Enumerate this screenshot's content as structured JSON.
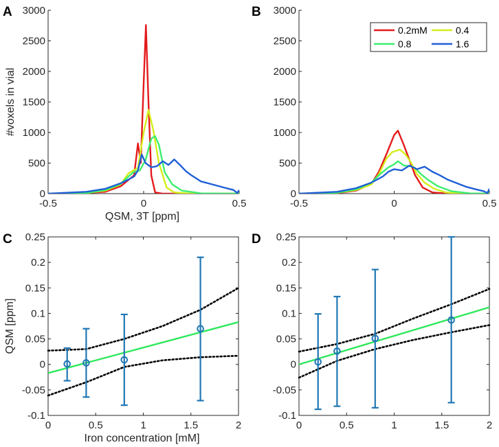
{
  "figure": {
    "panel_labels": [
      "A",
      "B",
      "C",
      "D"
    ]
  },
  "colors": {
    "red": "#e41a1c",
    "yellow": "#d4ee1a",
    "green": "#3cee6e",
    "blue": "#1f5fd6",
    "errorbar": "#1f77b4",
    "fit": "#2ee85c",
    "ci": "#000000",
    "axis": "#262626"
  },
  "chart_data": [
    {
      "id": "A",
      "type": "line",
      "xlim": [
        -0.5,
        0.5
      ],
      "ylim": [
        0,
        3000
      ],
      "xticks": [
        -0.5,
        0,
        0.5
      ],
      "yticks": [
        0,
        500,
        1000,
        1500,
        2000,
        2500,
        3000
      ],
      "xlabel": "QSM, 3T [ppm]",
      "ylabel": "#voxels in vial",
      "series": [
        {
          "name": "0.2mM",
          "color": "red",
          "points": [
            [
              -0.5,
              0
            ],
            [
              -0.35,
              5
            ],
            [
              -0.2,
              30
            ],
            [
              -0.12,
              120
            ],
            [
              -0.05,
              300
            ],
            [
              -0.03,
              820
            ],
            [
              -0.015,
              500
            ],
            [
              0.0,
              1800
            ],
            [
              0.012,
              2760
            ],
            [
              0.025,
              1500
            ],
            [
              0.04,
              300
            ],
            [
              0.06,
              20
            ],
            [
              0.1,
              0
            ],
            [
              0.5,
              0
            ]
          ]
        },
        {
          "name": "0.4",
          "color": "yellow",
          "points": [
            [
              -0.5,
              0
            ],
            [
              -0.3,
              10
            ],
            [
              -0.2,
              50
            ],
            [
              -0.12,
              150
            ],
            [
              -0.08,
              330
            ],
            [
              -0.06,
              370
            ],
            [
              -0.03,
              420
            ],
            [
              0.0,
              1000
            ],
            [
              0.025,
              1370
            ],
            [
              0.05,
              1050
            ],
            [
              0.08,
              500
            ],
            [
              0.12,
              100
            ],
            [
              0.16,
              20
            ],
            [
              0.25,
              0
            ],
            [
              0.5,
              0
            ]
          ]
        },
        {
          "name": "0.8",
          "color": "green",
          "points": [
            [
              -0.5,
              0
            ],
            [
              -0.3,
              10
            ],
            [
              -0.2,
              60
            ],
            [
              -0.12,
              160
            ],
            [
              -0.08,
              280
            ],
            [
              -0.05,
              360
            ],
            [
              -0.02,
              380
            ],
            [
              0.01,
              550
            ],
            [
              0.04,
              900
            ],
            [
              0.06,
              940
            ],
            [
              0.08,
              800
            ],
            [
              0.11,
              350
            ],
            [
              0.15,
              150
            ],
            [
              0.2,
              50
            ],
            [
              0.3,
              5
            ],
            [
              0.5,
              0
            ]
          ]
        },
        {
          "name": "1.6",
          "color": "blue",
          "points": [
            [
              -0.5,
              0
            ],
            [
              -0.3,
              30
            ],
            [
              -0.2,
              80
            ],
            [
              -0.12,
              170
            ],
            [
              -0.08,
              230
            ],
            [
              -0.05,
              280
            ],
            [
              -0.03,
              380
            ],
            [
              -0.01,
              640
            ],
            [
              0.01,
              500
            ],
            [
              0.04,
              430
            ],
            [
              0.07,
              450
            ],
            [
              0.1,
              530
            ],
            [
              0.13,
              470
            ],
            [
              0.16,
              560
            ],
            [
              0.19,
              470
            ],
            [
              0.22,
              370
            ],
            [
              0.25,
              300
            ],
            [
              0.3,
              200
            ],
            [
              0.36,
              150
            ],
            [
              0.42,
              100
            ],
            [
              0.47,
              60
            ],
            [
              0.49,
              10
            ],
            [
              0.5,
              60
            ]
          ]
        }
      ]
    },
    {
      "id": "B",
      "type": "line",
      "xlim": [
        -0.5,
        0.5
      ],
      "ylim": [
        0,
        3000
      ],
      "xticks": [
        -0.5,
        0,
        0.5
      ],
      "yticks": [
        0,
        500,
        1000,
        1500,
        2000,
        2500,
        3000
      ],
      "xlabel": "",
      "ylabel": "",
      "legend": {
        "position": "top-right",
        "entries": [
          "0.2mM",
          "0.4",
          "0.8",
          "1.6"
        ]
      },
      "series": [
        {
          "name": "0.2mM",
          "color": "red",
          "points": [
            [
              -0.5,
              0
            ],
            [
              -0.3,
              10
            ],
            [
              -0.2,
              50
            ],
            [
              -0.12,
              160
            ],
            [
              -0.08,
              360
            ],
            [
              -0.04,
              650
            ],
            [
              0.0,
              960
            ],
            [
              0.02,
              1030
            ],
            [
              0.05,
              800
            ],
            [
              0.08,
              550
            ],
            [
              0.11,
              300
            ],
            [
              0.15,
              100
            ],
            [
              0.2,
              20
            ],
            [
              0.28,
              0
            ],
            [
              0.5,
              0
            ]
          ]
        },
        {
          "name": "0.4",
          "color": "yellow",
          "points": [
            [
              -0.5,
              0
            ],
            [
              -0.3,
              15
            ],
            [
              -0.2,
              60
            ],
            [
              -0.12,
              150
            ],
            [
              -0.08,
              320
            ],
            [
              -0.04,
              580
            ],
            [
              -0.01,
              680
            ],
            [
              0.03,
              720
            ],
            [
              0.06,
              640
            ],
            [
              0.09,
              500
            ],
            [
              0.12,
              320
            ],
            [
              0.16,
              180
            ],
            [
              0.21,
              80
            ],
            [
              0.27,
              20
            ],
            [
              0.35,
              0
            ],
            [
              0.5,
              0
            ]
          ]
        },
        {
          "name": "0.8",
          "color": "green",
          "points": [
            [
              -0.5,
              0
            ],
            [
              -0.3,
              15
            ],
            [
              -0.2,
              70
            ],
            [
              -0.12,
              180
            ],
            [
              -0.07,
              330
            ],
            [
              -0.03,
              430
            ],
            [
              0.0,
              480
            ],
            [
              0.02,
              530
            ],
            [
              0.05,
              460
            ],
            [
              0.08,
              450
            ],
            [
              0.11,
              420
            ],
            [
              0.14,
              320
            ],
            [
              0.18,
              220
            ],
            [
              0.23,
              120
            ],
            [
              0.3,
              40
            ],
            [
              0.4,
              5
            ],
            [
              0.5,
              0
            ]
          ]
        },
        {
          "name": "1.6",
          "color": "blue",
          "points": [
            [
              -0.5,
              0
            ],
            [
              -0.3,
              30
            ],
            [
              -0.2,
              90
            ],
            [
              -0.12,
              180
            ],
            [
              -0.06,
              280
            ],
            [
              -0.03,
              360
            ],
            [
              0.0,
              400
            ],
            [
              0.04,
              380
            ],
            [
              0.08,
              460
            ],
            [
              0.12,
              400
            ],
            [
              0.16,
              440
            ],
            [
              0.2,
              360
            ],
            [
              0.24,
              300
            ],
            [
              0.28,
              230
            ],
            [
              0.33,
              170
            ],
            [
              0.38,
              110
            ],
            [
              0.43,
              70
            ],
            [
              0.47,
              40
            ],
            [
              0.49,
              10
            ],
            [
              0.5,
              80
            ]
          ]
        }
      ]
    },
    {
      "id": "C",
      "type": "scatter",
      "xlim": [
        0,
        2
      ],
      "ylim": [
        -0.1,
        0.25
      ],
      "xticks": [
        0,
        0.5,
        1,
        1.5,
        2
      ],
      "xticklabels": [
        "0",
        "0.5",
        "1",
        "1.5",
        "2"
      ],
      "yticks": [
        -0.1,
        -0.05,
        0,
        0.05,
        0.1,
        0.15,
        0.2,
        0.25
      ],
      "yticklabels": [
        "-0.1",
        "-0.05",
        "0",
        "0.05",
        "0.1",
        "0.15",
        "0.2",
        "0.25"
      ],
      "xlabel": "Iron concentration [mM]",
      "ylabel": "QSM [ppm]",
      "points": [
        {
          "x": 0.2,
          "y": 0.001,
          "low": -0.032,
          "high": 0.032
        },
        {
          "x": 0.4,
          "y": 0.003,
          "low": -0.064,
          "high": 0.07
        },
        {
          "x": 0.8,
          "y": 0.009,
          "low": -0.08,
          "high": 0.098
        },
        {
          "x": 1.6,
          "y": 0.07,
          "low": -0.071,
          "high": 0.21
        }
      ],
      "fit": [
        [
          0,
          -0.017
        ],
        [
          2,
          0.083
        ]
      ],
      "ci_upper": [
        [
          0,
          0.027
        ],
        [
          0.4,
          0.03
        ],
        [
          0.8,
          0.05
        ],
        [
          1.2,
          0.075
        ],
        [
          1.6,
          0.107
        ],
        [
          2,
          0.15
        ]
      ],
      "ci_lower": [
        [
          0,
          -0.061
        ],
        [
          0.4,
          -0.035
        ],
        [
          0.8,
          -0.005
        ],
        [
          1.2,
          0.008
        ],
        [
          1.6,
          0.014
        ],
        [
          2,
          0.017
        ]
      ]
    },
    {
      "id": "D",
      "type": "scatter",
      "xlim": [
        0,
        2
      ],
      "ylim": [
        -0.1,
        0.25
      ],
      "xticks": [
        0,
        0.5,
        1,
        1.5,
        2
      ],
      "xticklabels": [
        "0",
        "0.5",
        "1",
        "1.5",
        "2"
      ],
      "yticks": [
        -0.1,
        -0.05,
        0,
        0.05,
        0.1,
        0.15,
        0.2,
        0.25
      ],
      "yticklabels": [
        "-0.1",
        "-0.05",
        "0",
        "0.05",
        "0.1",
        "0.15",
        "0.2",
        "0.25"
      ],
      "xlabel": "",
      "ylabel": "",
      "points": [
        {
          "x": 0.2,
          "y": 0.005,
          "low": -0.088,
          "high": 0.099
        },
        {
          "x": 0.4,
          "y": 0.026,
          "low": -0.082,
          "high": 0.133
        },
        {
          "x": 0.8,
          "y": 0.051,
          "low": -0.085,
          "high": 0.186
        },
        {
          "x": 1.6,
          "y": 0.087,
          "low": -0.075,
          "high": 0.25
        }
      ],
      "fit": [
        [
          0,
          0.0
        ],
        [
          2,
          0.112
        ]
      ],
      "ci_upper": [
        [
          0,
          0.025
        ],
        [
          0.4,
          0.04
        ],
        [
          0.8,
          0.06
        ],
        [
          1.2,
          0.09
        ],
        [
          1.6,
          0.118
        ],
        [
          2,
          0.148
        ]
      ],
      "ci_lower": [
        [
          0,
          -0.026
        ],
        [
          0.4,
          0.007
        ],
        [
          0.8,
          0.03
        ],
        [
          1.2,
          0.048
        ],
        [
          1.6,
          0.063
        ],
        [
          2,
          0.077
        ]
      ]
    }
  ]
}
